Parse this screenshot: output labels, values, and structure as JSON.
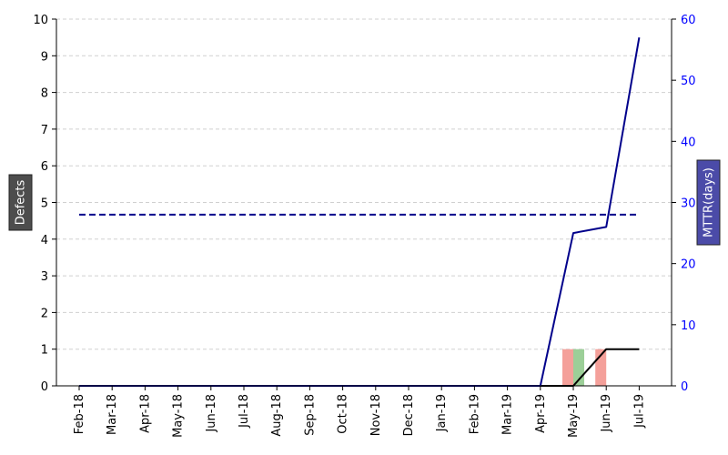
{
  "chart_data": {
    "type": "bar+line",
    "categories": [
      "Feb-18",
      "Mar-18",
      "Apr-18",
      "May-18",
      "Jun-18",
      "Jul-18",
      "Aug-18",
      "Sep-18",
      "Oct-18",
      "Nov-18",
      "Dec-18",
      "Jan-19",
      "Feb-19",
      "Mar-19",
      "Apr-19",
      "May-19",
      "Jun-19",
      "Jul-19"
    ],
    "ylabel": "Defects",
    "y2label": "MTTR(days)",
    "ylim": [
      0,
      10
    ],
    "y2lim": [
      0,
      60
    ],
    "yticks": [
      0,
      1,
      2,
      3,
      4,
      5,
      6,
      7,
      8,
      9,
      10
    ],
    "y2ticks": [
      0,
      10,
      20,
      30,
      40,
      50,
      60
    ],
    "grid": "horizontal dashed",
    "bars": [
      {
        "color": "#f4a09a",
        "values": [
          0,
          0,
          0,
          0,
          0,
          0,
          0,
          0,
          0,
          0,
          0,
          0,
          0,
          0,
          0,
          1,
          1,
          0
        ]
      },
      {
        "color": "#9ccf98",
        "values": [
          0,
          0,
          0,
          0,
          0,
          0,
          0,
          0,
          0,
          0,
          0,
          0,
          0,
          0,
          0,
          1,
          0,
          0
        ]
      }
    ],
    "lines": [
      {
        "axis": "left",
        "color": "#000000",
        "style": "solid",
        "values": [
          0,
          0,
          0,
          0,
          0,
          0,
          0,
          0,
          0,
          0,
          0,
          0,
          0,
          0,
          0,
          0,
          1,
          1
        ]
      },
      {
        "axis": "right",
        "color": "#00008b",
        "style": "solid",
        "values": [
          0,
          0,
          0,
          0,
          0,
          0,
          0,
          0,
          0,
          0,
          0,
          0,
          0,
          0,
          0,
          25,
          26,
          57
        ]
      },
      {
        "axis": "right",
        "color": "#00008b",
        "style": "dashed",
        "values": [
          28,
          28,
          28,
          28,
          28,
          28,
          28,
          28,
          28,
          28,
          28,
          28,
          28,
          28,
          28,
          28,
          28,
          28
        ]
      }
    ],
    "colors": {
      "right_axis": "#0000ff",
      "left_label_bg": "#4d4d4d",
      "right_label_bg": "#4b4ba8"
    }
  }
}
